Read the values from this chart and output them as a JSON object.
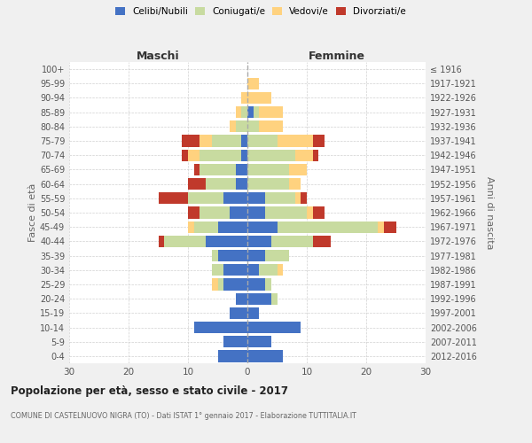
{
  "age_groups": [
    "0-4",
    "5-9",
    "10-14",
    "15-19",
    "20-24",
    "25-29",
    "30-34",
    "35-39",
    "40-44",
    "45-49",
    "50-54",
    "55-59",
    "60-64",
    "65-69",
    "70-74",
    "75-79",
    "80-84",
    "85-89",
    "90-94",
    "95-99",
    "100+"
  ],
  "birth_years": [
    "2012-2016",
    "2007-2011",
    "2002-2006",
    "1997-2001",
    "1992-1996",
    "1987-1991",
    "1982-1986",
    "1977-1981",
    "1972-1976",
    "1967-1971",
    "1962-1966",
    "1957-1961",
    "1952-1956",
    "1947-1951",
    "1942-1946",
    "1937-1941",
    "1932-1936",
    "1927-1931",
    "1922-1926",
    "1917-1921",
    "≤ 1916"
  ],
  "maschi": {
    "celibi": [
      5,
      4,
      9,
      3,
      2,
      4,
      4,
      5,
      7,
      5,
      3,
      4,
      2,
      2,
      1,
      1,
      0,
      0,
      0,
      0,
      0
    ],
    "coniugati": [
      0,
      0,
      0,
      0,
      0,
      1,
      2,
      1,
      7,
      4,
      5,
      6,
      5,
      6,
      7,
      5,
      2,
      1,
      0,
      0,
      0
    ],
    "vedovi": [
      0,
      0,
      0,
      0,
      0,
      1,
      0,
      0,
      0,
      1,
      0,
      0,
      0,
      0,
      2,
      2,
      1,
      1,
      1,
      0,
      0
    ],
    "divorziati": [
      0,
      0,
      0,
      0,
      0,
      0,
      0,
      0,
      1,
      0,
      2,
      5,
      3,
      1,
      1,
      3,
      0,
      0,
      0,
      0,
      0
    ]
  },
  "femmine": {
    "nubili": [
      6,
      4,
      9,
      2,
      4,
      3,
      2,
      3,
      4,
      5,
      3,
      3,
      0,
      0,
      0,
      0,
      0,
      1,
      0,
      0,
      0
    ],
    "coniugate": [
      0,
      0,
      0,
      0,
      1,
      1,
      3,
      4,
      7,
      17,
      7,
      5,
      7,
      7,
      8,
      5,
      2,
      1,
      0,
      0,
      0
    ],
    "vedove": [
      0,
      0,
      0,
      0,
      0,
      0,
      1,
      0,
      0,
      1,
      1,
      1,
      2,
      3,
      3,
      6,
      4,
      4,
      4,
      2,
      0
    ],
    "divorziate": [
      0,
      0,
      0,
      0,
      0,
      0,
      0,
      0,
      3,
      2,
      2,
      1,
      0,
      0,
      1,
      2,
      0,
      0,
      0,
      0,
      0
    ]
  },
  "colors": {
    "celibi_nubili": "#4472C4",
    "coniugati": "#c8dba0",
    "vedovi": "#ffd27f",
    "divorziati": "#c0392b"
  },
  "title": "Popolazione per età, sesso e stato civile - 2017",
  "subtitle": "COMUNE DI CASTELNUOVO NIGRA (TO) - Dati ISTAT 1° gennaio 2017 - Elaborazione TUTTITALIA.IT",
  "label_maschi": "Maschi",
  "label_femmine": "Femmine",
  "ylabel_left": "Fasce di età",
  "ylabel_right": "Anni di nascita",
  "xlim": 30,
  "bg_color": "#f0f0f0",
  "plot_bg": "#ffffff",
  "grid_color": "#cccccc"
}
